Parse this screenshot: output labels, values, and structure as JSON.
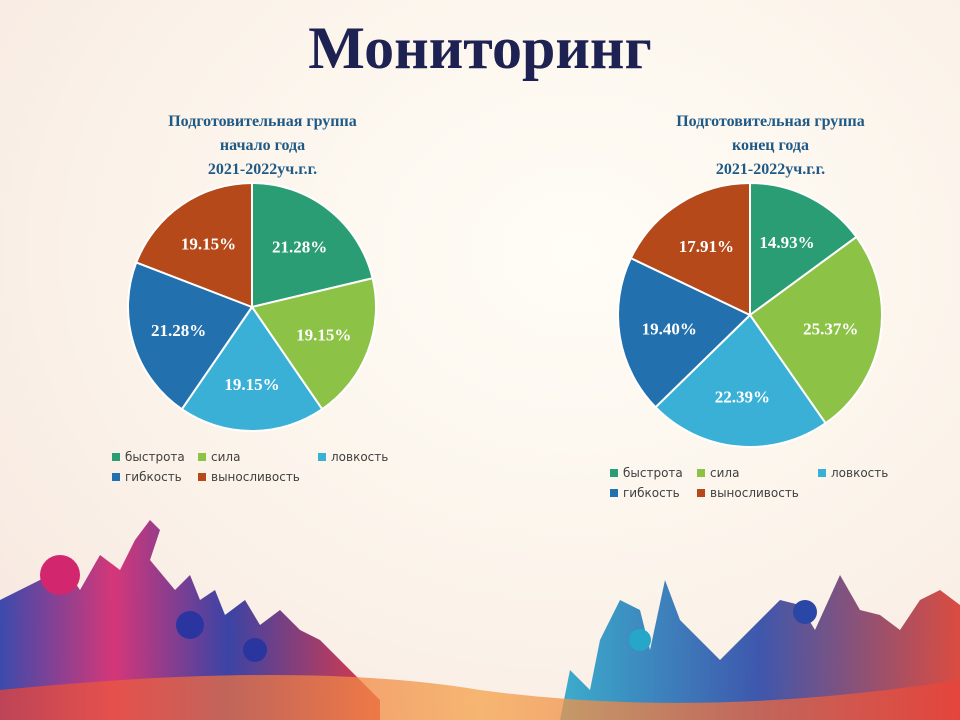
{
  "slide_title": "Мониторинг",
  "colors": {
    "быстрота": "#2a9d74",
    "сила": "#8cc246",
    "ловкость": "#3bb0d6",
    "гибкость": "#2271ae",
    "выносливость": "#b5491a"
  },
  "chart_data": [
    {
      "type": "pie",
      "title": [
        "Подготовительная группа",
        "начало года",
        "2021-2022уч.г.г."
      ],
      "categories": [
        "быстрота",
        "сила",
        "ловкость",
        "гибкость",
        "выносливость"
      ],
      "values": [
        21.28,
        19.15,
        19.15,
        21.28,
        19.15
      ],
      "labels": [
        "21.28%",
        "19.15%",
        "19.15%",
        "21.28%",
        "19.15%"
      ],
      "legend": "bottom"
    },
    {
      "type": "pie",
      "title": [
        "Подготовительная  группа",
        "конец года",
        "2021-2022уч.г.г."
      ],
      "categories": [
        "быстрота",
        "сила",
        "ловкость",
        "гибкость",
        "выносливость"
      ],
      "values": [
        14.93,
        25.37,
        22.39,
        19.4,
        17.91
      ],
      "labels": [
        "14.93%",
        "25.37%",
        "22.39%",
        "19.40%",
        "17.91%"
      ],
      "legend": "bottom"
    }
  ]
}
